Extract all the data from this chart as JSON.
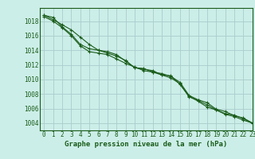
{
  "title": "Graphe pression niveau de la mer (hPa)",
  "bg_color": "#cceee8",
  "plot_bg_color": "#cceee8",
  "grid_color": "#aacccc",
  "line_color": "#1a5c1a",
  "border_color": "#1a5c1a",
  "xlim": [
    -0.5,
    23
  ],
  "ylim": [
    1003.0,
    1019.8
  ],
  "yticks": [
    1004,
    1006,
    1008,
    1010,
    1012,
    1014,
    1016,
    1018
  ],
  "xticks": [
    0,
    1,
    2,
    3,
    4,
    5,
    6,
    7,
    8,
    9,
    10,
    11,
    12,
    13,
    14,
    15,
    16,
    17,
    18,
    19,
    20,
    21,
    22,
    23
  ],
  "xtick_labels": [
    "0",
    "1",
    "2",
    "3",
    "4",
    "5",
    "6",
    "7",
    "8",
    "9",
    "10",
    "11",
    "12",
    "13",
    "14",
    "15",
    "16",
    "17",
    "18",
    "19",
    "20",
    "21",
    "22",
    "23"
  ],
  "series": [
    [
      1018.8,
      1018.2,
      1017.5,
      1016.8,
      1015.8,
      1014.8,
      1014.0,
      1013.8,
      1013.4,
      1012.5,
      1011.6,
      1011.4,
      1011.2,
      1010.6,
      1010.5,
      1009.3,
      1007.7,
      1007.0,
      1006.2,
      1005.8,
      1005.2,
      1004.9,
      1004.4,
      1004.0
    ],
    [
      1018.8,
      1018.5,
      1017.2,
      1016.2,
      1014.8,
      1014.2,
      1014.0,
      1013.6,
      1013.2,
      1012.6,
      1011.6,
      1011.5,
      1011.0,
      1010.8,
      1010.4,
      1009.6,
      1007.8,
      1007.2,
      1006.8,
      1005.9,
      1005.6,
      1005.0,
      1004.7,
      1004.0
    ],
    [
      1018.6,
      1018.0,
      1017.1,
      1016.0,
      1014.6,
      1013.8,
      1013.6,
      1013.4,
      1012.8,
      1012.2,
      1011.7,
      1011.2,
      1011.0,
      1010.6,
      1010.2,
      1009.4,
      1007.6,
      1007.1,
      1006.5,
      1005.8,
      1005.3,
      1005.1,
      1004.6,
      1004.0
    ]
  ],
  "tick_fontsize": 5.5,
  "xlabel_fontsize": 6.5,
  "linewidth": 0.8,
  "markersize": 2.5
}
